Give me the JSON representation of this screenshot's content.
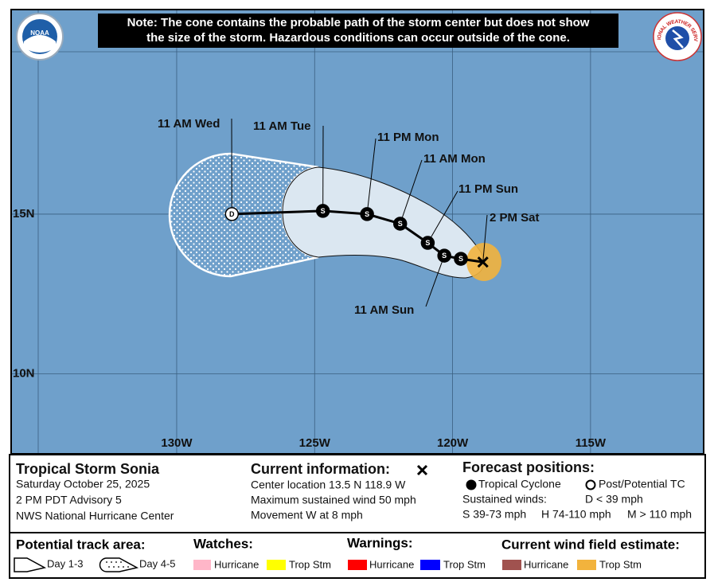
{
  "note": {
    "lines": [
      "Note: The cone contains the probable path of the storm center but does not show",
      "the size of the storm. Hazardous conditions can occur outside of the cone."
    ]
  },
  "logos": {
    "noaa": "NOAA",
    "nws": "NATIONAL WEATHER SERVICE"
  },
  "map": {
    "lonlim": [
      -136,
      -110.9
    ],
    "latlim": [
      7.5,
      21.4
    ],
    "lon_ticks": [
      {
        "value": -130,
        "label": "130W"
      },
      {
        "value": -125,
        "label": "125W"
      },
      {
        "value": -120,
        "label": "120W"
      },
      {
        "value": -115,
        "label": "115W"
      }
    ],
    "lat_ticks": [
      {
        "value": 15,
        "label": "15N"
      },
      {
        "value": 10,
        "label": "10N"
      }
    ],
    "current_position": {
      "label": "2 PM Sat",
      "lat": 13.5,
      "lon": -118.9
    },
    "forecast_points": [
      {
        "label": null,
        "symbol": "S",
        "lat": 13.6,
        "lon": -119.7
      },
      {
        "label": "11 AM Sun",
        "symbol": "S",
        "lat": 13.7,
        "lon": -120.3
      },
      {
        "label": "11 PM Sun",
        "symbol": "S",
        "lat": 14.1,
        "lon": -120.9
      },
      {
        "label": "11 AM Mon",
        "symbol": "S",
        "lat": 14.7,
        "lon": -121.9
      },
      {
        "label": "11 PM Mon",
        "symbol": "S",
        "lat": 15.0,
        "lon": -123.1
      },
      {
        "label": "11 AM Tue",
        "symbol": "S",
        "lat": 15.1,
        "lon": -124.7
      },
      {
        "label": "11 AM Wed",
        "symbol": "D",
        "lat": 15.0,
        "lon": -128.0
      }
    ]
  },
  "info": {
    "storm": {
      "title": "Tropical Storm Sonia",
      "date": "Saturday October 25, 2025",
      "advisory": "2 PM PDT Advisory 5",
      "center": "NWS National Hurricane Center"
    },
    "current": {
      "title": "Current information:",
      "lines": [
        "Center location 13.5 N 118.9 W",
        "Maximum sustained wind 50 mph",
        "Movement W at 8 mph"
      ]
    },
    "forecast": {
      "title": "Forecast positions:",
      "tropical": "Tropical Cyclone",
      "post": "Post/Potential TC",
      "winds": "Sustained winds:",
      "d": "D < 39 mph",
      "s": "S 39-73 mph",
      "h": "H 74-110 mph",
      "m": "M > 110 mph"
    }
  },
  "legend": {
    "track": {
      "title": "Potential track area:",
      "day13": "Day 1-3",
      "day45": "Day 4-5"
    },
    "watches": {
      "title": "Watches:",
      "hurricane": "Hurricane",
      "trop": "Trop Stm"
    },
    "warnings": {
      "title": "Warnings:",
      "hurricane": "Hurricane",
      "trop": "Trop Stm"
    },
    "wind": {
      "title": "Current wind field estimate:",
      "hurricane": "Hurricane",
      "trop": "Trop Stm"
    }
  }
}
